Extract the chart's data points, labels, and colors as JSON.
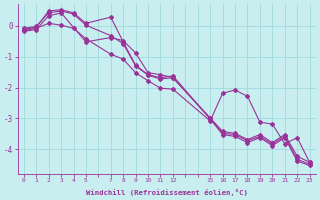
{
  "title": "",
  "xlabel": "Windchill (Refroidissement éolien,°C)",
  "ylabel": "",
  "bg_color": "#c8eef0",
  "grid_color": "#a0d8dc",
  "line_color": "#993399",
  "all_xticks": [
    0,
    1,
    2,
    3,
    4,
    5,
    6,
    7,
    8,
    9,
    10,
    11,
    12,
    13,
    14,
    15,
    16,
    17,
    18,
    19,
    20,
    21,
    22,
    23
  ],
  "labeled_xticks": [
    0,
    1,
    2,
    3,
    4,
    5,
    7,
    8,
    9,
    10,
    11,
    12,
    15,
    16,
    17,
    18,
    19,
    20,
    21,
    22,
    23
  ],
  "yticks": [
    0,
    -1,
    -2,
    -3,
    -4
  ],
  "xlim": [
    -0.5,
    23.5
  ],
  "ylim": [
    -4.8,
    0.7
  ],
  "series": [
    {
      "x": [
        0,
        1,
        2,
        3,
        4,
        5,
        7,
        8,
        9,
        10,
        11,
        12,
        15,
        16,
        17,
        18,
        19,
        20,
        21,
        22,
        23
      ],
      "y": [
        -0.08,
        -0.02,
        0.42,
        0.48,
        0.38,
        0.02,
        -0.32,
        -0.58,
        -1.3,
        -1.6,
        -1.72,
        -1.68,
        -3.0,
        -3.48,
        -3.52,
        -3.72,
        -3.58,
        -3.82,
        -3.58,
        -4.32,
        -4.48
      ]
    },
    {
      "x": [
        0,
        1,
        2,
        3,
        4,
        5,
        7,
        8,
        9,
        10,
        11,
        12,
        15,
        16,
        17,
        18,
        19,
        20,
        21,
        22,
        23
      ],
      "y": [
        -0.12,
        -0.05,
        0.48,
        0.52,
        0.42,
        0.08,
        0.28,
        -0.52,
        -1.28,
        -1.58,
        -1.68,
        -1.62,
        -3.02,
        -3.52,
        -3.58,
        -3.78,
        -3.62,
        -3.88,
        -3.62,
        -4.38,
        -4.52
      ]
    },
    {
      "x": [
        0,
        1,
        2,
        3,
        4,
        5,
        7,
        8,
        9,
        10,
        11,
        12,
        15,
        16,
        17,
        18,
        19,
        20,
        21,
        22,
        23
      ],
      "y": [
        -0.15,
        -0.08,
        0.08,
        0.02,
        -0.08,
        -0.42,
        -0.92,
        -1.08,
        -1.52,
        -1.78,
        -2.02,
        -2.05,
        -3.08,
        -2.18,
        -2.08,
        -2.28,
        -3.12,
        -3.18,
        -3.82,
        -3.62,
        -4.42
      ]
    },
    {
      "x": [
        0,
        1,
        2,
        3,
        5,
        7,
        8,
        9,
        10,
        11,
        12,
        15,
        16,
        17,
        18,
        19,
        20,
        21,
        22,
        23
      ],
      "y": [
        -0.18,
        -0.12,
        0.32,
        0.42,
        -0.52,
        -0.38,
        -0.48,
        -0.88,
        -1.52,
        -1.58,
        -1.68,
        -2.98,
        -3.42,
        -3.48,
        -3.68,
        -3.52,
        -3.78,
        -3.52,
        -4.22,
        -4.42
      ]
    }
  ]
}
